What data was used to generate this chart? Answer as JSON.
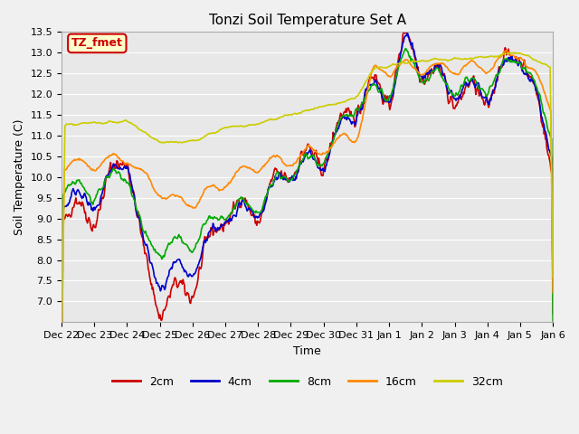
{
  "title": "Tonzi Soil Temperature Set A",
  "xlabel": "Time",
  "ylabel": "Soil Temperature (C)",
  "ylim": [
    6.5,
    13.5
  ],
  "yticks": [
    7.0,
    7.5,
    8.0,
    8.5,
    9.0,
    9.5,
    10.0,
    10.5,
    11.0,
    11.5,
    12.0,
    12.5,
    13.0,
    13.5
  ],
  "bg_color": "#e8e8e8",
  "annotation_text": "TZ_fmet",
  "annotation_bg": "#ffffcc",
  "annotation_border": "#cc0000",
  "line_colors": {
    "2cm": "#cc0000",
    "4cm": "#0000cc",
    "8cm": "#00aa00",
    "16cm": "#ff8800",
    "32cm": "#cccc00"
  },
  "legend_labels": [
    "2cm",
    "4cm",
    "8cm",
    "16cm",
    "32cm"
  ],
  "xtick_labels": [
    "Dec 22",
    "Dec 23",
    "Dec 24",
    "Dec 25",
    "Dec 26",
    "Dec 27",
    "Dec 28",
    "Dec 29",
    "Dec 30",
    "Dec 31",
    "Jan 1",
    "Jan 2",
    "Jan 3",
    "Jan 4",
    "Jan 5",
    "Jan 6"
  ],
  "num_points_per_day": 48,
  "start_day": 0
}
